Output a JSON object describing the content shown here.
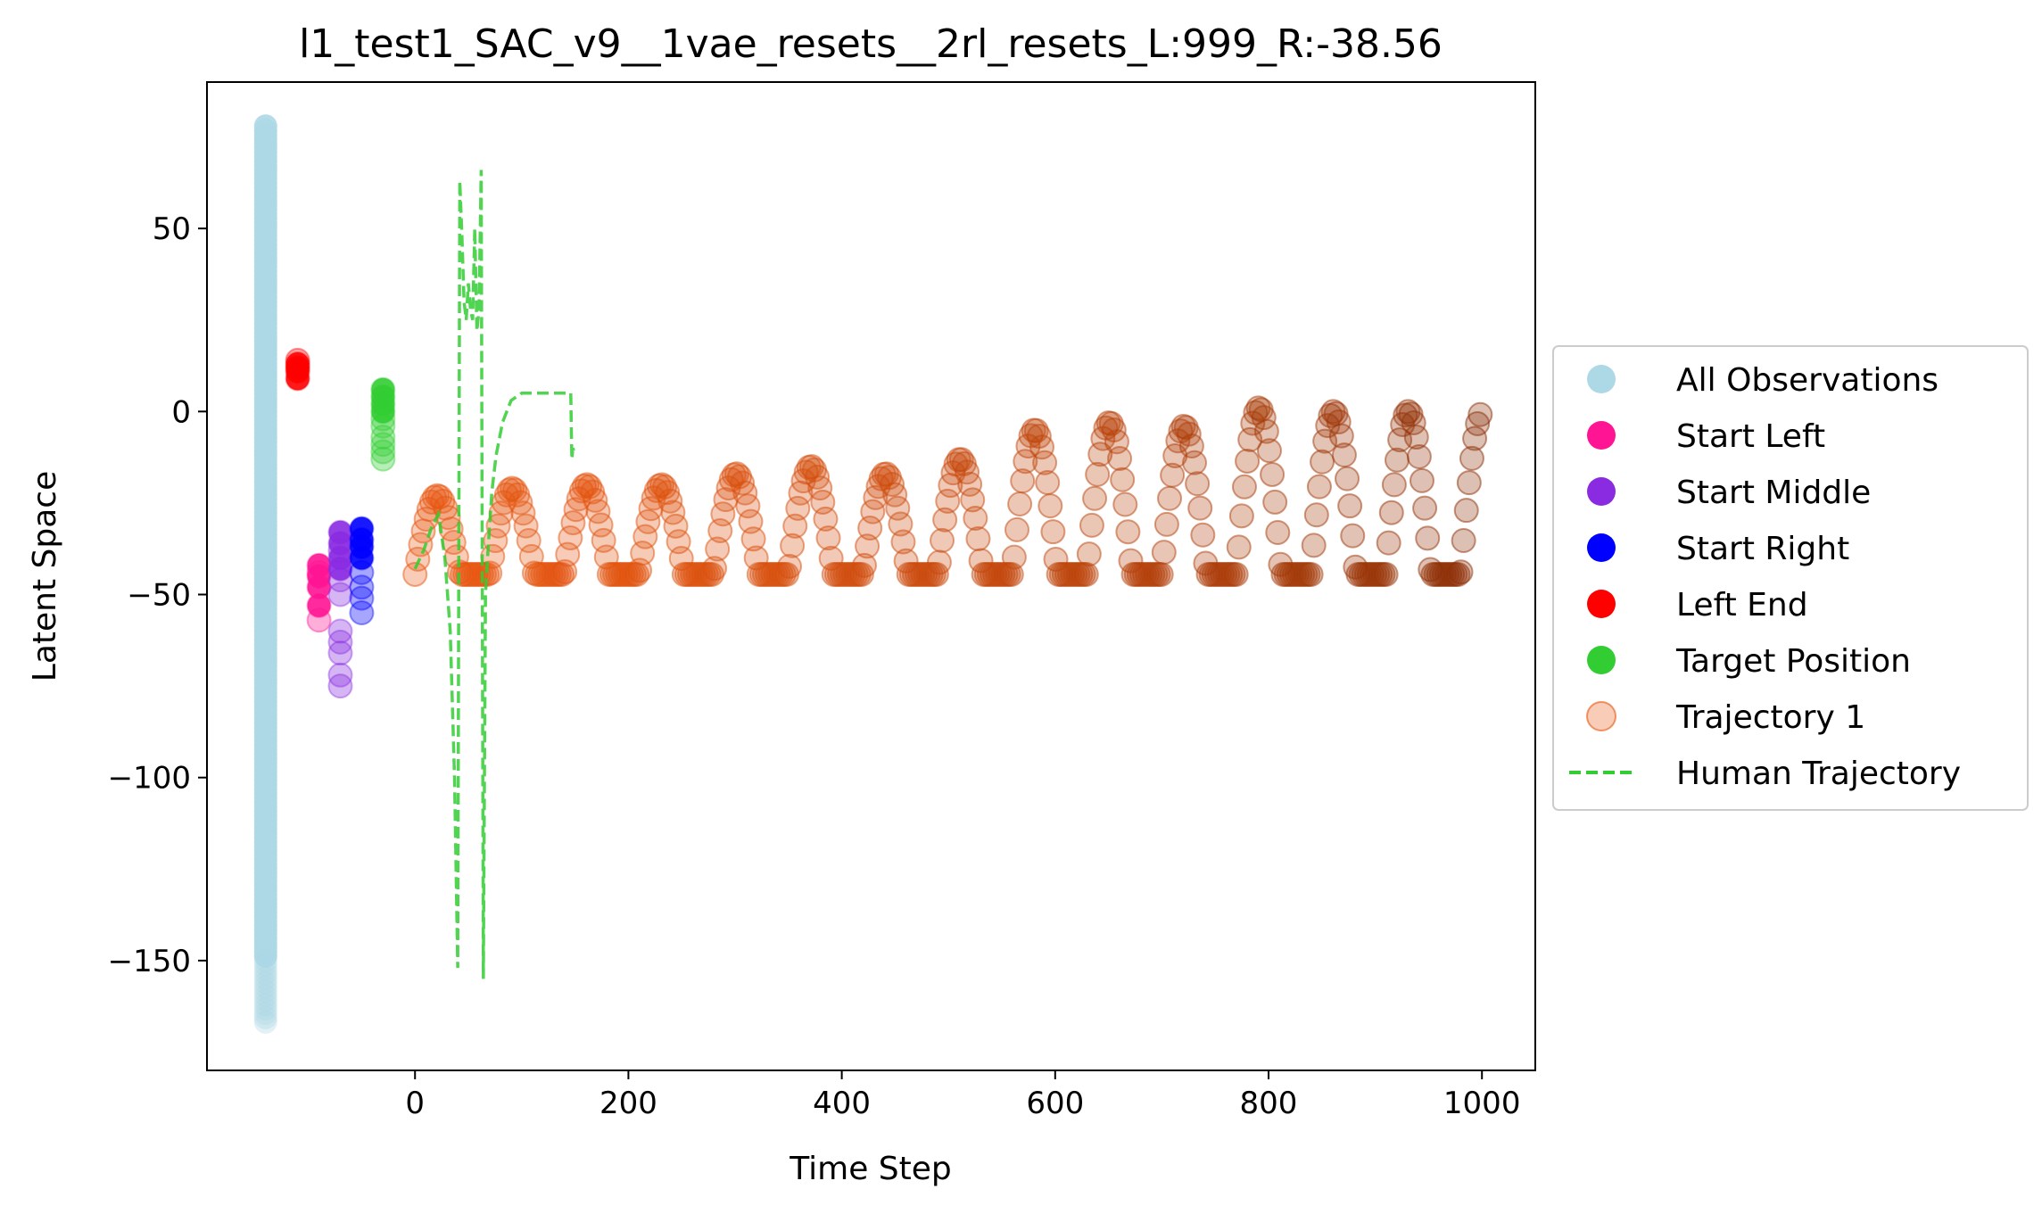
{
  "chart_data": {
    "type": "scatter",
    "title": "l1_test1_SAC_v9__1vae_resets__2rl_resets_L:999_R:-38.56",
    "xlabel": "Time Step",
    "ylabel": "Latent Space",
    "xlim": [
      -195,
      1050
    ],
    "ylim": [
      -180,
      90
    ],
    "xticks": [
      0,
      200,
      400,
      600,
      800,
      1000
    ],
    "yticks": [
      50,
      0,
      -50,
      -100,
      -150
    ],
    "ytick_labels": [
      "50",
      "0",
      "−50",
      "−100",
      "−150"
    ],
    "grid": false,
    "legend_position": "outside-right",
    "legend": [
      {
        "label": "All Observations",
        "color": "#add8e6",
        "marker": "circle",
        "alpha": 1
      },
      {
        "label": "Start Left",
        "color": "#ff1493",
        "marker": "circle",
        "alpha": 1
      },
      {
        "label": "Start Middle",
        "color": "#8a2be2",
        "marker": "circle",
        "alpha": 1
      },
      {
        "label": "Start Right",
        "color": "#0000ff",
        "marker": "circle",
        "alpha": 1
      },
      {
        "label": "Left End",
        "color": "#ff0000",
        "marker": "circle",
        "alpha": 1
      },
      {
        "label": "Target Position",
        "color": "#32cd32",
        "marker": "circle",
        "alpha": 1
      },
      {
        "label": "Trajectory 1",
        "color": "#e8560f",
        "marker": "circle",
        "alpha": 0.3
      },
      {
        "label": "Human Trajectory",
        "color": "#32cd32",
        "marker": "dashed-line",
        "alpha": 1
      }
    ],
    "series": [
      {
        "name": "All Observations",
        "type": "vertical-band",
        "x": -140,
        "y_range": [
          -167,
          78
        ],
        "color": "#add8e6"
      },
      {
        "name": "Start Left",
        "x": [
          -90,
          -90,
          -90,
          -90,
          -90,
          -90
        ],
        "y": [
          -42,
          -45,
          -48,
          -53,
          -57,
          -44
        ],
        "color": "#ff1493"
      },
      {
        "name": "Start Middle",
        "x": [
          -70,
          -70,
          -70,
          -70,
          -70,
          -70,
          -70,
          -70,
          -70,
          -70,
          -70,
          -70
        ],
        "y": [
          -33,
          -36,
          -40,
          -43,
          -46,
          -50,
          -60,
          -63,
          -66,
          -72,
          -75,
          -38
        ],
        "color": "#8a2be2"
      },
      {
        "name": "Start Right",
        "x": [
          -50,
          -50,
          -50,
          -50,
          -50,
          -50,
          -50,
          -50
        ],
        "y": [
          -32,
          -35,
          -37,
          -40,
          -44,
          -48,
          -51,
          -55
        ],
        "color": "#0000ff"
      },
      {
        "name": "Left End",
        "x": [
          -110,
          -110,
          -110,
          -110,
          -110
        ],
        "y": [
          9,
          11,
          12,
          13,
          14
        ],
        "color": "#ff0000"
      },
      {
        "name": "Target Position",
        "x": [
          -30,
          -30,
          -30,
          -30,
          -30,
          -30,
          -30,
          -30,
          -30,
          -30
        ],
        "y": [
          6,
          4,
          2,
          0,
          -2,
          -4,
          -7,
          -9,
          -11,
          -13
        ],
        "color": "#32cd32"
      },
      {
        "name": "Trajectory 1",
        "type": "oscillating",
        "x_range": [
          0,
          999
        ],
        "period": 70,
        "y_min": -44.5,
        "y_peaks": [
          -23,
          -21,
          -20,
          -20,
          -17,
          -15,
          -17,
          -13,
          -5,
          -3,
          -4,
          1,
          0
        ],
        "color_start": "#e8560f",
        "color_end": "#8b2e05"
      },
      {
        "name": "Human Trajectory",
        "type": "line",
        "style": "dashed",
        "x": [
          0,
          8,
          15,
          22,
          28,
          33,
          37,
          40,
          42,
          44,
          46,
          48,
          50,
          52,
          54,
          56,
          58,
          60,
          62,
          64,
          66,
          68,
          72,
          76,
          82,
          90,
          100,
          115,
          135,
          146,
          147,
          148,
          150
        ],
        "y": [
          -43,
          -38,
          -32,
          -28,
          -40,
          -60,
          -100,
          -152,
          63,
          48,
          30,
          25,
          35,
          28,
          25,
          50,
          22,
          28,
          66,
          -155,
          -50,
          -40,
          -22,
          -12,
          -3,
          3,
          5,
          5,
          5,
          5,
          -13,
          -10,
          -12
        ],
        "color": "#32cd32"
      }
    ]
  }
}
